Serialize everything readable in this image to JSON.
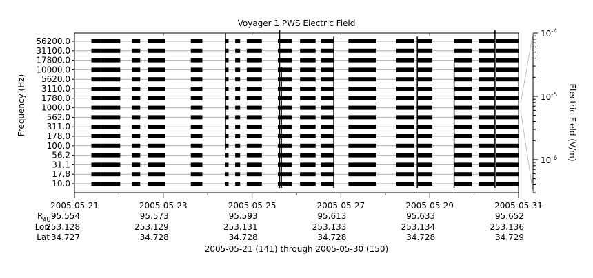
{
  "chart_data": {
    "type": "heatmap",
    "title": "Voyager 1 PWS Electric Field",
    "ylabel": "Frequency (Hz)",
    "colorbar_label": "Electric Field (V/m)",
    "colorbar_scale": "log",
    "colorbar_ticks": [
      {
        "base": "10",
        "exp": "-4",
        "value": 0.0001
      },
      {
        "base": "10",
        "exp": "-5",
        "value": 1e-05
      },
      {
        "base": "10",
        "exp": "-6",
        "value": 1e-06
      }
    ],
    "colorbar_range": [
      3e-07,
      0.0001
    ],
    "frequency_channels": [
      "10.0",
      "17.8",
      "31.1",
      "56.2",
      "100.0",
      "178.0",
      "311.0",
      "562.0",
      "1000.0",
      "1780.0",
      "3110.0",
      "5620.0",
      "10000.0",
      "17800.0",
      "31100.0",
      "56200.0"
    ],
    "x_ticks": [
      "2005-05-21",
      "2005-05-23",
      "2005-05-25",
      "2005-05-27",
      "2005-05-29",
      "2005-05-31"
    ],
    "xlim_days": [
      0,
      10
    ],
    "ephemeris_labels": {
      "r": "R",
      "r_sub": "AU",
      "lon": "Lon",
      "lat": "Lat"
    },
    "ephemeris": {
      "r": [
        "95.554",
        "95.573",
        "95.593",
        "95.613",
        "95.633",
        "95.652"
      ],
      "lon": [
        "253.128",
        "253.129",
        "253.131",
        "253.133",
        "253.134",
        "253.136"
      ],
      "lat": [
        "34.727",
        "34.728",
        "34.728",
        "34.728",
        "34.728",
        "34.729"
      ]
    },
    "data_intervals_days": [
      [
        0.38,
        0.6
      ],
      [
        0.6,
        1.03
      ],
      [
        1.3,
        1.48
      ],
      [
        1.65,
        2.05
      ],
      [
        2.62,
        2.88
      ],
      [
        3.4,
        3.47
      ],
      [
        3.62,
        3.73
      ],
      [
        3.88,
        4.22
      ],
      [
        4.58,
        4.62
      ],
      [
        4.62,
        4.9
      ],
      [
        5.08,
        5.43
      ],
      [
        5.55,
        5.84
      ],
      [
        6.17,
        6.8
      ],
      [
        7.25,
        7.65
      ],
      [
        7.72,
        8.06
      ],
      [
        8.55,
        8.95
      ],
      [
        9.1,
        9.45
      ],
      [
        9.5,
        10.0
      ]
    ],
    "spikes": [
      {
        "day": 3.4,
        "top_channel": 15.6,
        "bottom_channel": 4.0
      },
      {
        "day": 4.62,
        "top_channel": 15.9,
        "bottom_channel": 0.0
      },
      {
        "day": 4.66,
        "top_channel": 12.0,
        "bottom_channel": 0.0
      },
      {
        "day": 5.84,
        "top_channel": 15.2,
        "bottom_channel": 0.0
      },
      {
        "day": 7.72,
        "top_channel": 15.2,
        "bottom_channel": 0.0
      },
      {
        "day": 8.55,
        "top_channel": 12.5,
        "bottom_channel": 0.0
      },
      {
        "day": 9.47,
        "top_channel": 15.9,
        "bottom_channel": 0.0
      }
    ],
    "footer": "2005-05-21 (141) through 2005-05-30 (150)",
    "grid": true
  }
}
